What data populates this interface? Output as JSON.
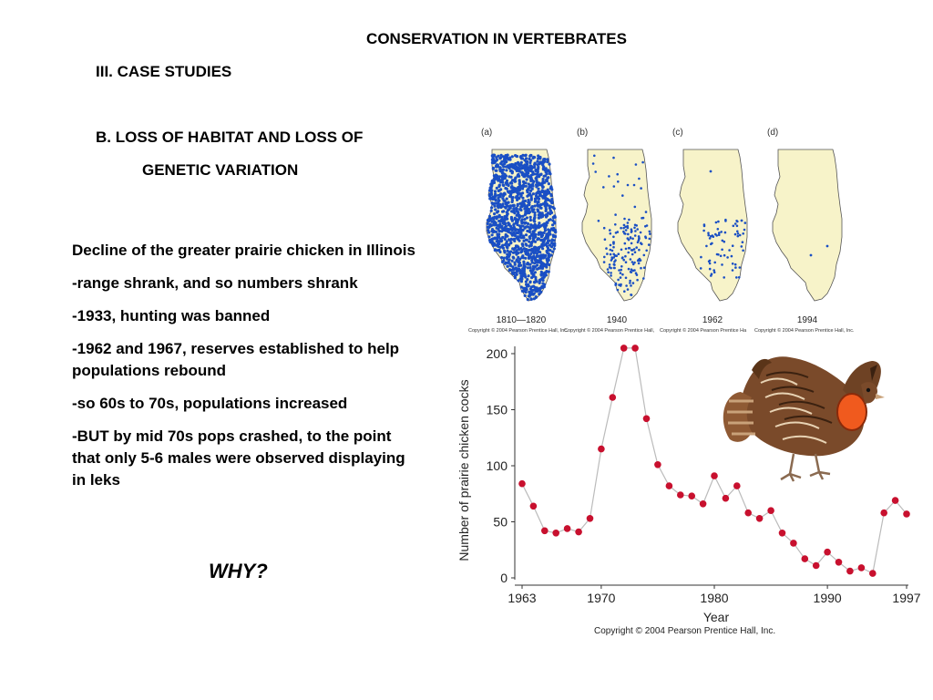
{
  "slide": {
    "title": "CONSERVATION IN VERTEBRATES",
    "section": "III. CASE STUDIES",
    "subsection_line1": "B. LOSS OF HABITAT AND LOSS OF",
    "subsection_line2": "GENETIC VARIATION",
    "bullets": [
      "Decline of the greater prairie chicken in Illinois",
      "-range shrank, and so numbers shrank",
      "-1933, hunting was banned",
      "-1962 and 1967, reserves established to help populations rebound",
      "-so 60s to 70s, populations increased",
      "-BUT by mid 70s pops crashed, to the point that only 5-6 males were observed displaying in leks"
    ],
    "why": "WHY?"
  },
  "maps": {
    "panels": [
      {
        "letter": "(a)",
        "years": "1810—1820"
      },
      {
        "letter": "(b)",
        "years": "1940"
      },
      {
        "letter": "(c)",
        "years": "1962"
      },
      {
        "letter": "(d)",
        "years": "1994"
      }
    ],
    "copyrights": [
      "Copyright © 2004 Pearson Prentice Hall, Inc.",
      "Copyright © 2004 Pearson Prentice Hall,",
      "Copyright © 2004 Pearson Prentice Ha",
      "Copyright © 2004 Pearson Prentice Hall, Inc."
    ],
    "colors": {
      "land": "#f7f3c9",
      "dots": "#1a4fc4",
      "outline": "#555555"
    }
  },
  "chart_data": {
    "type": "line",
    "ylabel": "Number of prairie chicken cocks",
    "xlabel": "Year",
    "xlim": [
      1963,
      1997
    ],
    "ylim": [
      0,
      200
    ],
    "x_ticks": [
      1963,
      1970,
      1980,
      1990,
      1997
    ],
    "y_ticks": [
      0,
      50,
      100,
      150,
      200
    ],
    "x": [
      1963,
      1964,
      1965,
      1966,
      1967,
      1968,
      1969,
      1970,
      1971,
      1972,
      1973,
      1974,
      1975,
      1976,
      1977,
      1978,
      1979,
      1980,
      1981,
      1982,
      1983,
      1984,
      1985,
      1986,
      1987,
      1988,
      1989,
      1990,
      1991,
      1992,
      1993,
      1994,
      1995,
      1996,
      1997
    ],
    "values": [
      84,
      64,
      42,
      40,
      44,
      41,
      53,
      115,
      161,
      205,
      205,
      142,
      101,
      82,
      74,
      73,
      66,
      91,
      71,
      82,
      58,
      53,
      60,
      40,
      31,
      17,
      11,
      23,
      14,
      6,
      9,
      4,
      58,
      69,
      57
    ],
    "marker_color": "#c8102e",
    "line_color": "#bbbbbb",
    "copyright": "Copyright © 2004 Pearson Prentice Hall, Inc."
  }
}
